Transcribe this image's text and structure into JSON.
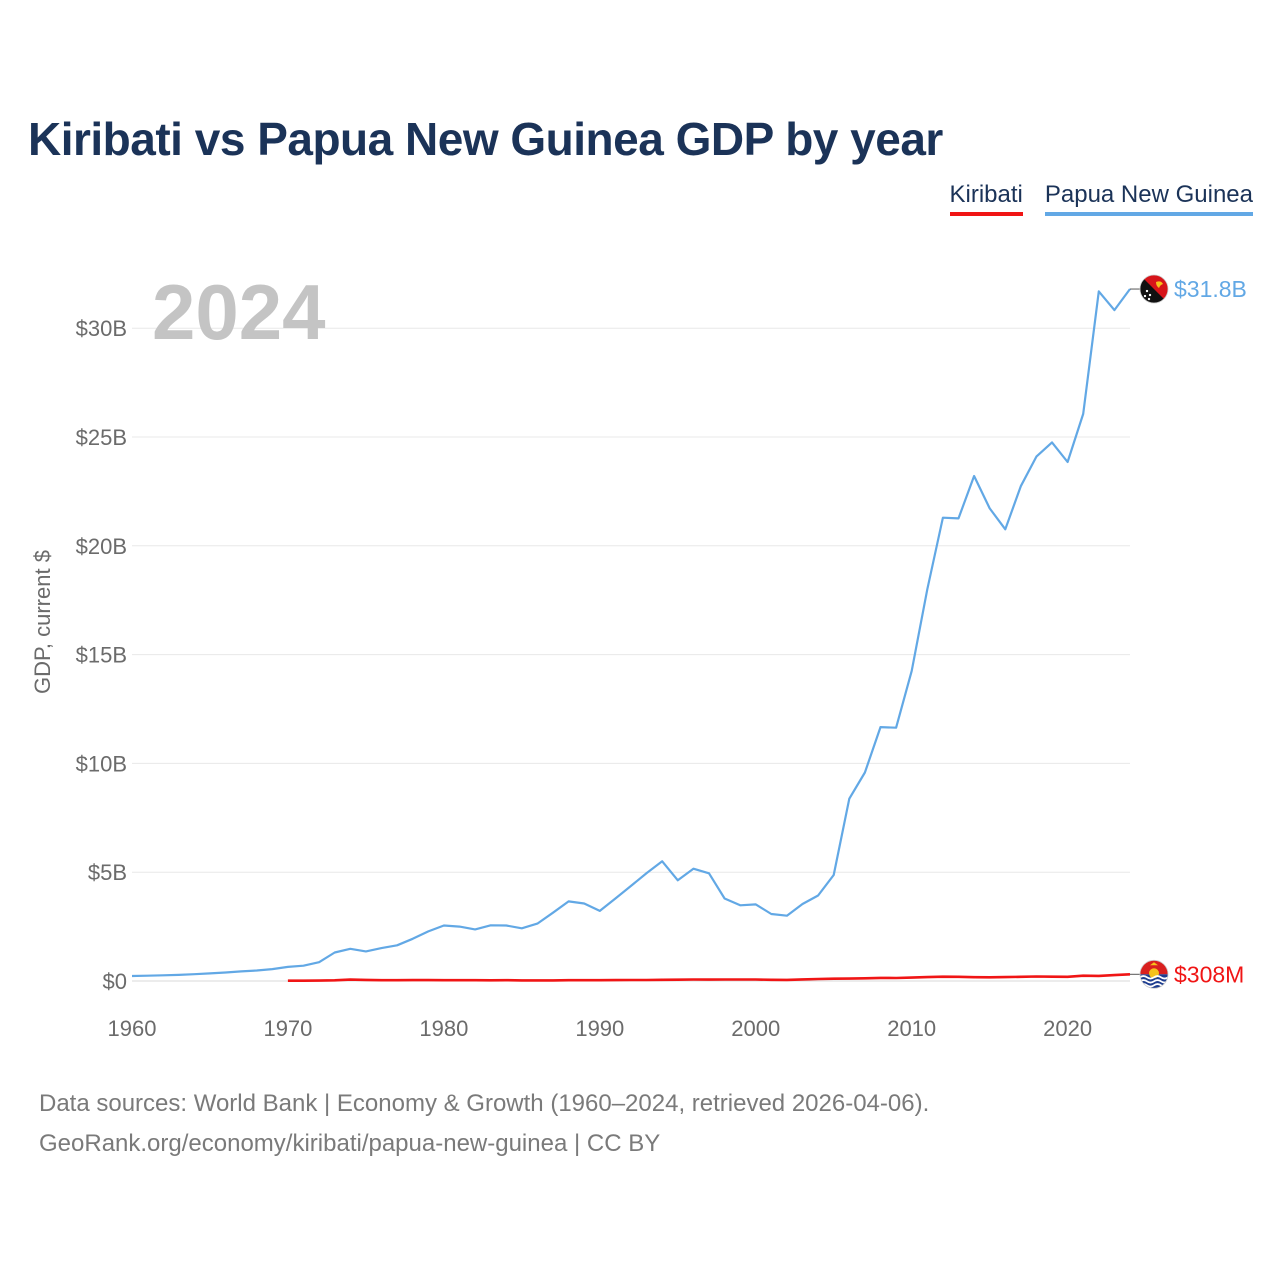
{
  "header": {
    "title": "Kiribati vs Papua New Guinea GDP by year"
  },
  "legend": [
    {
      "label": "Kiribati",
      "color": "#f01515"
    },
    {
      "label": "Papua New Guinea",
      "color": "#62a8e5"
    }
  ],
  "footer": {
    "source_line": "Data sources: World Bank | Economy & Growth (1960–2024, retrieved 2026-04-06).",
    "credit_line": "GeoRank.org/economy/kiribati/papua-new-guinea | CC BY"
  },
  "chart_data": {
    "type": "line",
    "title": "Kiribati vs Papua New Guinea GDP by year",
    "current_year_label": "2024",
    "xlabel": "",
    "ylabel": "GDP, current $",
    "xlim": [
      1960,
      2024
    ],
    "ylim": [
      0,
      32000000000
    ],
    "x_ticks": [
      1960,
      1970,
      1980,
      1990,
      2000,
      2010,
      2020
    ],
    "x_tick_labels": [
      "1960",
      "1970",
      "1980",
      "1990",
      "2000",
      "2010",
      "2020"
    ],
    "y_ticks": [
      0,
      5000000000,
      10000000000,
      15000000000,
      20000000000,
      25000000000,
      30000000000
    ],
    "y_tick_labels": [
      "$0",
      "$5B",
      "$10B",
      "$15B",
      "$20B",
      "$25B",
      "$30B"
    ],
    "grid": true,
    "legend_position": "top-right",
    "series": [
      {
        "name": "Papua New Guinea",
        "color": "#62a8e5",
        "end_label": "$31.8B",
        "flag_icon": "papua-new-guinea-flag-icon",
        "x": [
          1960,
          1961,
          1962,
          1963,
          1964,
          1965,
          1966,
          1967,
          1968,
          1969,
          1970,
          1971,
          1972,
          1973,
          1974,
          1975,
          1976,
          1977,
          1978,
          1979,
          1980,
          1981,
          1982,
          1983,
          1984,
          1985,
          1986,
          1987,
          1988,
          1989,
          1990,
          1991,
          1992,
          1993,
          1994,
          1995,
          1996,
          1997,
          1998,
          1999,
          2000,
          2001,
          2002,
          2003,
          2004,
          2005,
          2006,
          2007,
          2008,
          2009,
          2010,
          2011,
          2012,
          2013,
          2014,
          2015,
          2016,
          2017,
          2018,
          2019,
          2020,
          2021,
          2022,
          2023,
          2024
        ],
        "values": [
          230000000,
          244000000,
          260000000,
          282000000,
          312000000,
          350000000,
          392000000,
          442000000,
          483000000,
          549000000,
          646000000,
          702000000,
          864000000,
          1310000000,
          1480000000,
          1360000000,
          1510000000,
          1640000000,
          1940000000,
          2280000000,
          2550000000,
          2500000000,
          2370000000,
          2560000000,
          2550000000,
          2420000000,
          2640000000,
          3140000000,
          3660000000,
          3560000000,
          3220000000,
          3790000000,
          4370000000,
          4960000000,
          5500000000,
          4630000000,
          5160000000,
          4950000000,
          3790000000,
          3480000000,
          3520000000,
          3080000000,
          3000000000,
          3540000000,
          3930000000,
          4870000000,
          8380000000,
          9580000000,
          11670000000,
          11640000000,
          14250000000,
          18000000000,
          21290000000,
          21260000000,
          23210000000,
          21720000000,
          20760000000,
          22740000000,
          24100000000,
          24750000000,
          23850000000,
          26060000000,
          31690000000,
          30830000000,
          31800000000
        ]
      },
      {
        "name": "Kiribati",
        "color": "#f01515",
        "end_label": "$308M",
        "flag_icon": "kiribati-flag-icon",
        "x": [
          1970,
          1971,
          1972,
          1973,
          1974,
          1975,
          1976,
          1977,
          1978,
          1979,
          1980,
          1981,
          1982,
          1983,
          1984,
          1985,
          1986,
          1987,
          1988,
          1989,
          1990,
          1991,
          1992,
          1993,
          1994,
          1995,
          1996,
          1997,
          1998,
          1999,
          2000,
          2001,
          2002,
          2003,
          2004,
          2005,
          2006,
          2007,
          2008,
          2009,
          2010,
          2011,
          2012,
          2013,
          2014,
          2015,
          2016,
          2017,
          2018,
          2019,
          2020,
          2021,
          2022,
          2023,
          2024
        ],
        "values": [
          14000000,
          15000000,
          19000000,
          32000000,
          66000000,
          51000000,
          39000000,
          37000000,
          42000000,
          41000000,
          38000000,
          37000000,
          35000000,
          33000000,
          35000000,
          27000000,
          26000000,
          29000000,
          36000000,
          36000000,
          36000000,
          40000000,
          47000000,
          46000000,
          53000000,
          59000000,
          67000000,
          66000000,
          71000000,
          68000000,
          67000000,
          56000000,
          52000000,
          72000000,
          92000000,
          105000000,
          112000000,
          126000000,
          143000000,
          138000000,
          156000000,
          181000000,
          196000000,
          191000000,
          175000000,
          169000000,
          181000000,
          194000000,
          206000000,
          196000000,
          193000000,
          243000000,
          236000000,
          270000000,
          308000000
        ]
      }
    ]
  }
}
